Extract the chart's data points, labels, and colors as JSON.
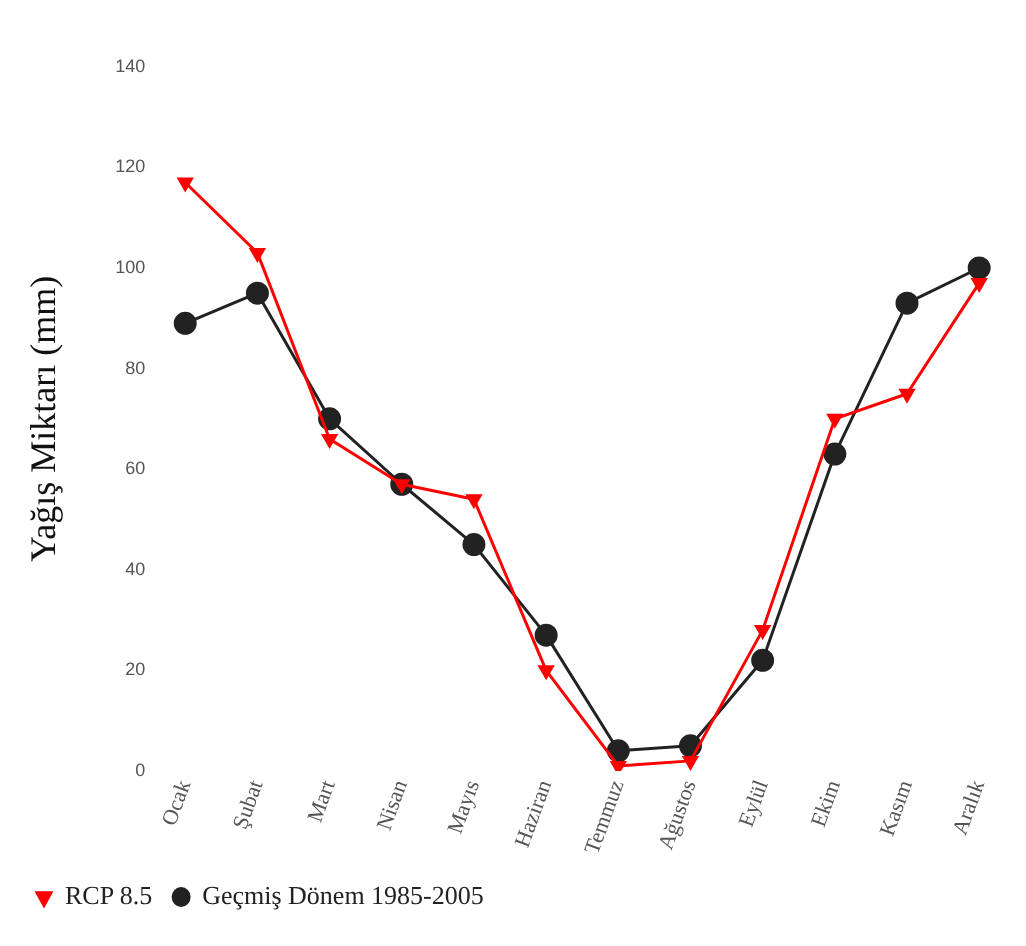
{
  "chart_data": {
    "type": "line",
    "ylabel": "Yağış Miktarı (mm)",
    "categories": [
      "Ocak",
      "Şubat",
      "Mart",
      "Nisan",
      "Mayıs",
      "Haziran",
      "Temmuz",
      "Ağustos",
      "Eylül",
      "Ekim",
      "Kasım",
      "Aralık"
    ],
    "series": [
      {
        "name": "RCP 8.5",
        "color": "#ff0000",
        "marker": "triangle",
        "values": [
          117,
          103,
          66,
          57,
          54,
          20,
          1,
          2,
          28,
          70,
          75,
          97
        ]
      },
      {
        "name": "Geçmiş Dönem 1985-2005",
        "color": "#222222",
        "marker": "circle",
        "values": [
          89,
          95,
          70,
          57,
          45,
          27,
          4,
          5,
          22,
          63,
          93,
          100
        ]
      }
    ],
    "ylim": [
      0,
      140
    ],
    "yticks": [
      0,
      20,
      40,
      60,
      80,
      100,
      120,
      140
    ],
    "grid": false,
    "legend": "bottom left",
    "line_style": "solid"
  }
}
